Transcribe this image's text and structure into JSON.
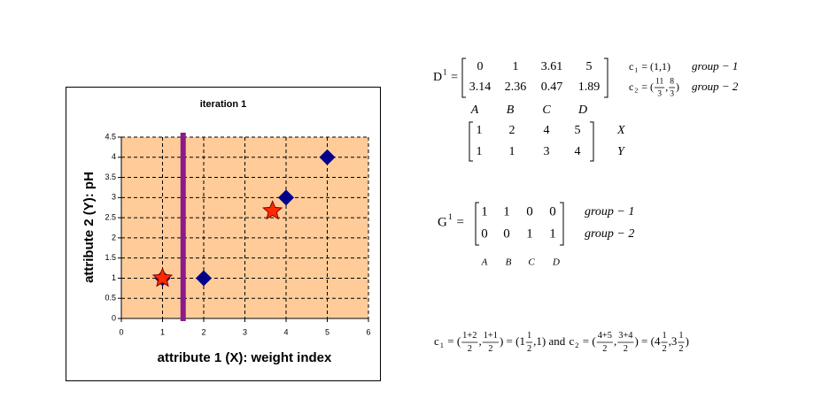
{
  "chart_data": {
    "type": "scatter",
    "title": "iteration 1",
    "xlabel": "attribute 1 (X): weight index",
    "ylabel": "attribute 2 (Y): pH",
    "xlim": [
      0,
      6
    ],
    "ylim": [
      0,
      4.5
    ],
    "xticks": [
      0,
      1,
      2,
      3,
      4,
      5,
      6
    ],
    "yticks": [
      0,
      0.5,
      1,
      1.5,
      2,
      2.5,
      3,
      3.5,
      4,
      4.5
    ],
    "grid": true,
    "background": "#ffcc99",
    "series": [
      {
        "marker": "diamond",
        "color": "#00008b",
        "x": [
          1,
          2,
          4,
          5
        ],
        "values": [
          1,
          1,
          3,
          4
        ]
      },
      {
        "marker": "star",
        "color": "#ff2a00",
        "x": [
          1,
          3.67
        ],
        "values": [
          1,
          2.67
        ]
      }
    ],
    "boundary": {
      "x": 1.5,
      "color": "#8b1a8b"
    }
  },
  "d_equation": {
    "label": [
      {
        "text": "D"
      },
      {
        "sup": "1"
      },
      {
        "text": " ="
      }
    ],
    "rows": [
      [
        0,
        1,
        3.61,
        5
      ],
      [
        3.14,
        2.36,
        0.47,
        1.89
      ]
    ],
    "columns": [
      "A",
      "B",
      "C",
      "D"
    ]
  },
  "centroids": [
    [
      {
        "text": "c"
      },
      {
        "sub": "1"
      },
      {
        "text": " = (1,1)"
      }
    ],
    [
      {
        "text": "c"
      },
      {
        "sub": "2"
      },
      {
        "text": " = ("
      },
      {
        "num": "11",
        "den": "3"
      },
      {
        "text": ","
      },
      {
        "num": "8",
        "den": "3"
      },
      {
        "text": ")"
      }
    ]
  ],
  "centroid_groups": [
    "group − 1",
    "group − 2"
  ],
  "points_matrix": {
    "rows": [
      [
        1,
        2,
        4,
        5
      ],
      [
        1,
        1,
        3,
        4
      ]
    ],
    "row_labels": [
      "X",
      "Y"
    ]
  },
  "g_equation": {
    "label": [
      {
        "text": "G"
      },
      {
        "sup": "1"
      },
      {
        "text": " ="
      }
    ],
    "rows": [
      [
        1,
        1,
        0,
        0
      ],
      [
        0,
        0,
        1,
        1
      ]
    ],
    "row_labels": [
      "group − 1",
      "group − 2"
    ],
    "columns": [
      "A",
      "B",
      "C",
      "D"
    ]
  },
  "formula": [
    {
      "text": "c"
    },
    {
      "sub": "1"
    },
    {
      "text": " = ("
    },
    {
      "num": "1+2",
      "den": "2"
    },
    {
      "text": ","
    },
    {
      "num": "1+1",
      "den": "2"
    },
    {
      "text": ") = (1"
    },
    {
      "num": "1",
      "den": "2"
    },
    {
      "text": ",1) and "
    },
    {
      "text": "c"
    },
    {
      "sub": "2"
    },
    {
      "text": " = ("
    },
    {
      "num": "4+5",
      "den": "2"
    },
    {
      "text": ","
    },
    {
      "num": "3+4",
      "den": "2"
    },
    {
      "text": ") = (4"
    },
    {
      "num": "1",
      "den": "2"
    },
    {
      "text": ",3"
    },
    {
      "num": "1",
      "den": "2"
    },
    {
      "text": ")"
    }
  ]
}
